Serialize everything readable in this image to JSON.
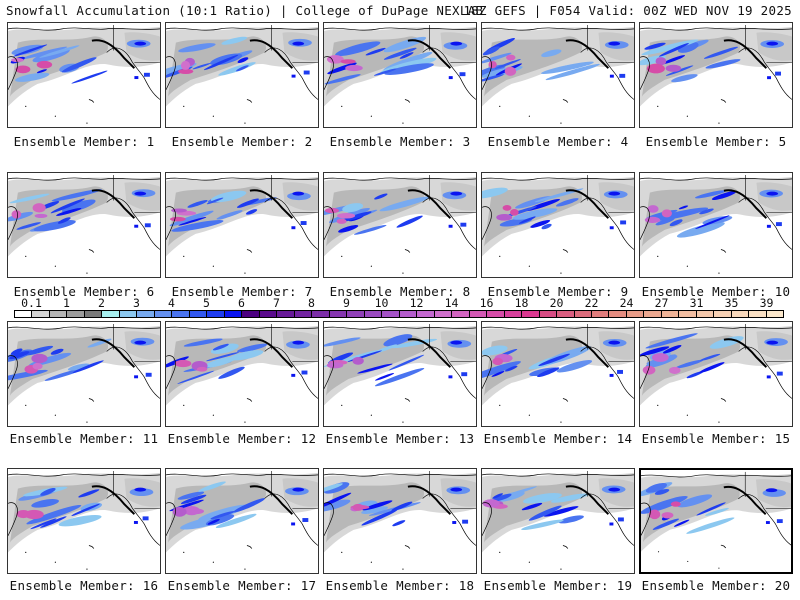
{
  "header": {
    "left_title": "Snowfall Accumulation (10:1 Ratio) | College of DuPage NEXLAB",
    "right_title": "18Z GEFS | F054 Valid: 00Z WED NOV 19 2025"
  },
  "panels": [
    {
      "label": "Ensemble Member: 1"
    },
    {
      "label": "Ensemble Member: 2"
    },
    {
      "label": "Ensemble Member: 3"
    },
    {
      "label": "Ensemble Member: 4"
    },
    {
      "label": "Ensemble Member: 5"
    },
    {
      "label": "Ensemble Member: 6"
    },
    {
      "label": "Ensemble Member: 7"
    },
    {
      "label": "Ensemble Member: 8"
    },
    {
      "label": "Ensemble Member: 9"
    },
    {
      "label": "Ensemble Member: 10"
    },
    {
      "label": "Ensemble Member: 11"
    },
    {
      "label": "Ensemble Member: 12"
    },
    {
      "label": "Ensemble Member: 13"
    },
    {
      "label": "Ensemble Member: 14"
    },
    {
      "label": "Ensemble Member: 15"
    },
    {
      "label": "Ensemble Member: 16"
    },
    {
      "label": "Ensemble Member: 17"
    },
    {
      "label": "Ensemble Member: 18"
    },
    {
      "label": "Ensemble Member: 19"
    },
    {
      "label": "Ensemble Member: 20"
    }
  ],
  "colorbar": {
    "labels": [
      "0.1",
      "1",
      "2",
      "3",
      "4",
      "5",
      "6",
      "7",
      "8",
      "9",
      "10",
      "12",
      "14",
      "16",
      "18",
      "20",
      "22",
      "24",
      "27",
      "31",
      "35",
      "39"
    ],
    "colors": [
      "#ffffff",
      "#d4d4d4",
      "#b4b4b4",
      "#9c9c9c",
      "#7a7a7a",
      "#a8f0f0",
      "#8cc8f0",
      "#78aaf0",
      "#6490f0",
      "#4a74f0",
      "#3258f0",
      "#1e3cf0",
      "#0a14f0",
      "#4c0080",
      "#5a0a8c",
      "#681a98",
      "#7224a0",
      "#7c2ea8",
      "#8636b0",
      "#9040b8",
      "#9a4ac0",
      "#a452c6",
      "#b45ccc",
      "#c468d0",
      "#d070cc",
      "#d264c0",
      "#d458b4",
      "#d64ca8",
      "#d8409c",
      "#da3890",
      "#d84c84",
      "#da5e80",
      "#dc6c7c",
      "#e07c7c",
      "#e48c80",
      "#e89c88",
      "#eca890",
      "#f0b498",
      "#f2bea2",
      "#f4c8ac",
      "#f6d0b4",
      "#f8d8bc",
      "#fae0c4",
      "#fce8cc"
    ]
  },
  "map": {
    "ocean_color": "#ffffff",
    "coast_color": "#000000"
  }
}
